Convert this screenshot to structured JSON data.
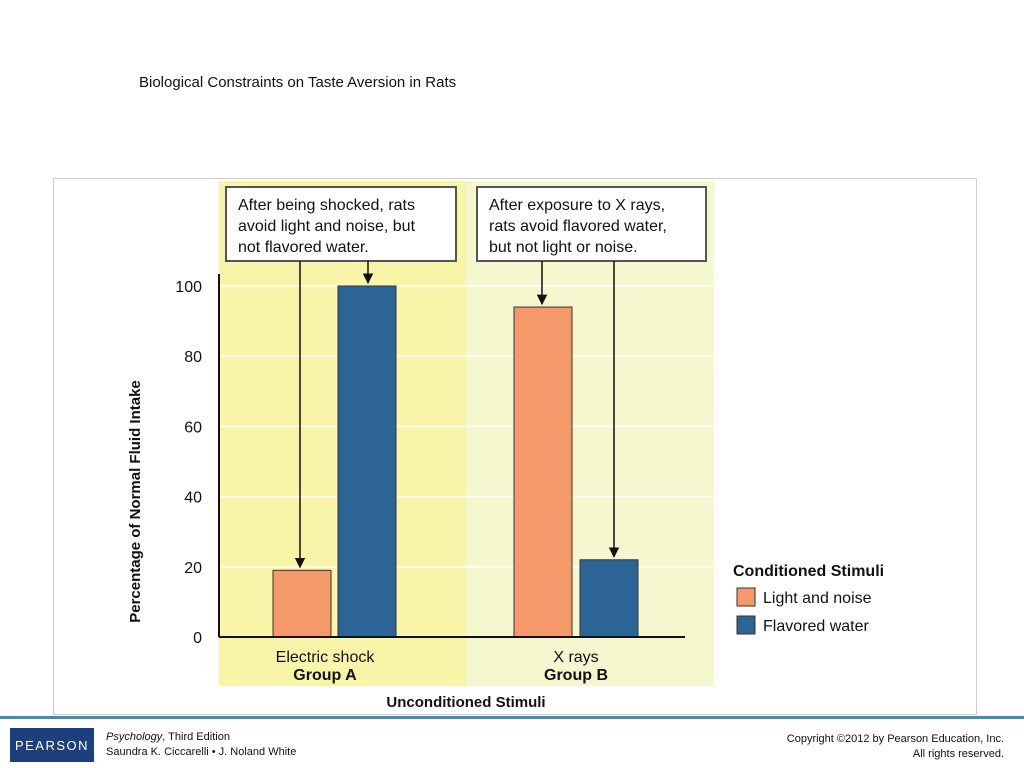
{
  "slide": {
    "title": "Biological Constraints on Taste Aversion in Rats"
  },
  "footer": {
    "logo_text": "PEARSON",
    "book_title": "Psychology",
    "edition": ", Third Edition",
    "authors": "Saundra K. Ciccarelli • J. Noland White",
    "copyright": "Copyright ©2012 by Pearson Education, Inc.",
    "rights": "All rights reserved."
  },
  "colors": {
    "group_a_bg": "#f8f5a8",
    "group_b_bg": "#f5f7cf",
    "light_noise": "#f5986a",
    "flavored_water": "#2c6496",
    "footer_rule": "#3f8fb0",
    "logo_bg": "#1d3f7c"
  },
  "chart_data": {
    "type": "bar",
    "title": "",
    "xlabel": "Unconditioned Stimuli",
    "ylabel": "Percentage of Normal Fluid Intake",
    "ylim": [
      0,
      100
    ],
    "yticks": [
      0,
      20,
      40,
      60,
      80,
      100
    ],
    "grid": true,
    "groups": [
      {
        "category": "Electric shock",
        "group": "Group A"
      },
      {
        "category": "X rays",
        "group": "Group B"
      }
    ],
    "series": [
      {
        "name": "Light and noise",
        "values": [
          19,
          94
        ]
      },
      {
        "name": "Flavored water",
        "values": [
          100,
          22
        ]
      }
    ],
    "legend": {
      "title": "Conditioned Stimuli",
      "position": "right"
    },
    "annotations": [
      {
        "group_index": 0,
        "lines": [
          "After being shocked, rats",
          "avoid light and noise, but",
          "not flavored water."
        ]
      },
      {
        "group_index": 1,
        "lines": [
          "After exposure to X rays,",
          "rats avoid flavored water,",
          "but not light or noise."
        ]
      }
    ]
  }
}
